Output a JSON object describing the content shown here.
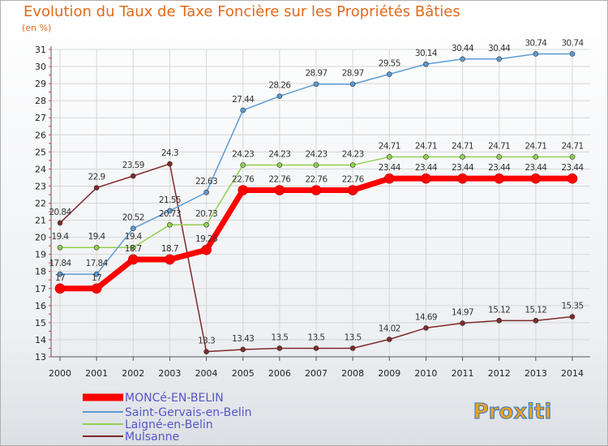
{
  "title": "Evolution du Taux de Taxe Foncière sur les Propriétés Bâties",
  "unit": "(en %)",
  "logo_text": "Proxiti",
  "chart_data": {
    "type": "line",
    "title": "Evolution du Taux de Taxe Foncière sur les Propriétés Bâties",
    "ylabel": "(en %)",
    "xlabel": "",
    "x": [
      2000,
      2001,
      2002,
      2003,
      2004,
      2005,
      2006,
      2007,
      2008,
      2009,
      2010,
      2011,
      2012,
      2013,
      2014
    ],
    "ylim": [
      13,
      31
    ],
    "yticks": [
      13,
      14,
      15,
      16,
      17,
      18,
      19,
      20,
      21,
      22,
      23,
      24,
      25,
      26,
      27,
      28,
      29,
      30,
      31
    ],
    "legend_position": "bottom-left",
    "series": [
      {
        "name": "MONCé-EN-BELIN",
        "color": "#ff0000",
        "width": 7,
        "values": [
          17,
          17,
          18.7,
          18.7,
          19.26,
          22.76,
          22.76,
          22.76,
          22.76,
          23.44,
          23.44,
          23.44,
          23.44,
          23.44,
          23.44
        ],
        "labels": [
          "17",
          "17",
          "18.7",
          "18.7",
          "19.26",
          "22.76",
          "22.76",
          "22.76",
          "22.76",
          "23.44",
          "23.44",
          "23.44",
          "23.44",
          "23.44",
          "23.44"
        ]
      },
      {
        "name": "Saint-Gervais-en-Belin",
        "color": "#5b9bd5",
        "width": 1.5,
        "values": [
          17.84,
          17.84,
          20.52,
          21.55,
          22.63,
          27.44,
          28.26,
          28.97,
          28.97,
          29.55,
          30.14,
          30.44,
          30.44,
          30.74,
          30.74
        ],
        "labels": [
          "17.84",
          "17.84",
          "20.52",
          "21.55",
          "22.63",
          "27.44",
          "28.26",
          "28.97",
          "28.97",
          "29.55",
          "30.14",
          "30.44",
          "30.44",
          "30.74",
          "30.74"
        ]
      },
      {
        "name": "Laigné-en-Belin",
        "color": "#92d050",
        "width": 1.5,
        "values": [
          19.4,
          19.4,
          19.4,
          20.73,
          20.73,
          24.23,
          24.23,
          24.23,
          24.23,
          24.71,
          24.71,
          24.71,
          24.71,
          24.71,
          24.71
        ],
        "labels": [
          "19.4",
          "19.4",
          "19.4",
          "20.73",
          "20.73",
          "24.23",
          "24.23",
          "24.23",
          "24.23",
          "24.71",
          "24.71",
          "24.71",
          "24.71",
          "24.71",
          "24.71"
        ]
      },
      {
        "name": "Mulsanne",
        "color": "#7f2a2a",
        "width": 1.5,
        "values": [
          20.84,
          22.9,
          23.59,
          24.3,
          13.3,
          13.43,
          13.5,
          13.5,
          13.5,
          14.02,
          14.69,
          14.97,
          15.12,
          15.12,
          15.35
        ],
        "labels": [
          "20.84",
          "22.9",
          "23.59",
          "24.3",
          "13.3",
          "13.43",
          "13.5",
          "13.5",
          "13.5",
          "14.02",
          "14.69",
          "14.97",
          "15.12",
          "15.12",
          "15.35"
        ]
      }
    ]
  }
}
